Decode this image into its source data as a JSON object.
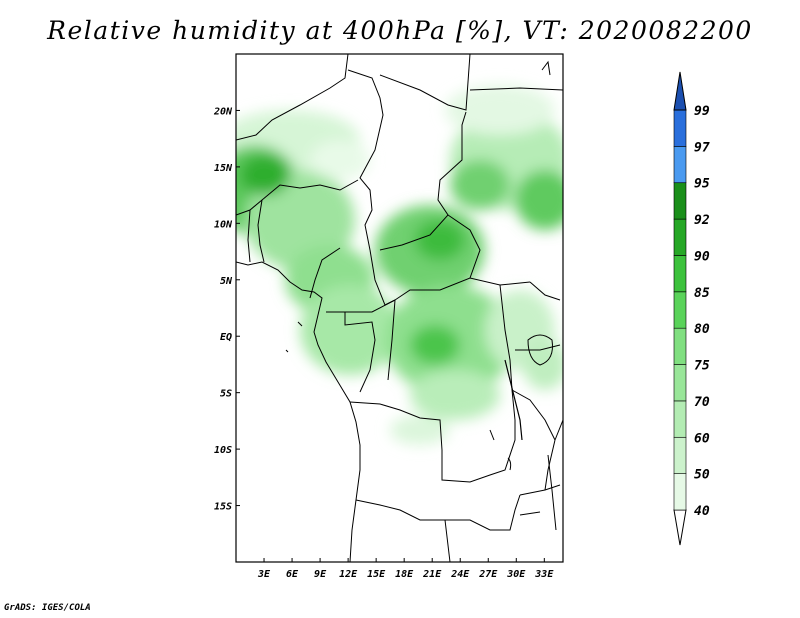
{
  "title": "Relative humidity at 400hPa [%], VT: 2020082200",
  "footer": "GrADS: IGES/COLA",
  "map": {
    "lat_labels": [
      "20N",
      "15N",
      "10N",
      "5N",
      "EQ",
      "5S",
      "10S",
      "15S"
    ],
    "lat_values": [
      20,
      15,
      10,
      5,
      0,
      -5,
      -10,
      -15
    ],
    "lon_labels": [
      "3E",
      "6E",
      "9E",
      "12E",
      "15E",
      "18E",
      "21E",
      "24E",
      "27E",
      "30E",
      "33E"
    ],
    "lon_values": [
      3,
      6,
      9,
      12,
      15,
      18,
      21,
      24,
      27,
      30,
      33
    ],
    "lon_range": [
      0,
      35
    ],
    "lat_range": [
      -20,
      25
    ]
  },
  "colorbar": {
    "labels": [
      "40",
      "50",
      "60",
      "70",
      "75",
      "80",
      "85",
      "90",
      "92",
      "95",
      "97",
      "99"
    ],
    "colors": [
      "#ffffff",
      "#e6f9e6",
      "#ccf2cc",
      "#b3ecb3",
      "#99e699",
      "#80df80",
      "#5ad35a",
      "#3cc23c",
      "#26a826",
      "#1a8f1a",
      "#4a9af0",
      "#2a6fdc",
      "#1b4fb0"
    ]
  }
}
